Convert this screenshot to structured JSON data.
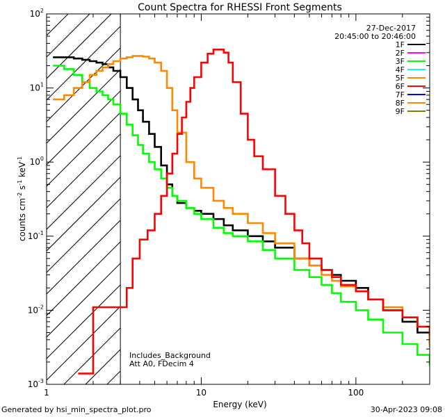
{
  "chart_data": {
    "type": "line",
    "title": "Count Spectra for RHESSI Front Segments",
    "xlabel": "Energy (keV)",
    "ylabel_parts": [
      "counts cm",
      "-2",
      " s",
      "-1",
      " keV",
      "-1"
    ],
    "xscale": "log",
    "yscale": "log",
    "xlim": [
      1,
      300
    ],
    "ylim": [
      0.001,
      100
    ],
    "x_ticks": [
      {
        "value": 1,
        "label": "1"
      },
      {
        "value": 10,
        "label": "10"
      },
      {
        "value": 100,
        "label": "100"
      }
    ],
    "y_ticks": [
      {
        "value": 0.001,
        "base": "10",
        "exp": "-3"
      },
      {
        "value": 0.01,
        "base": "10",
        "exp": "-2"
      },
      {
        "value": 0.1,
        "base": "10",
        "exp": "-1"
      },
      {
        "value": 1,
        "base": "10",
        "exp": "0"
      },
      {
        "value": 10,
        "base": "10",
        "exp": "1"
      },
      {
        "value": 100,
        "base": "10",
        "exp": "2"
      }
    ],
    "date": "27-Dec-2017",
    "time_range": "20:45:00 to 20:46:00",
    "hatch_region_max_energy": 3,
    "annotations": [
      "Includes_Background",
      "Att A0, FDecim 4"
    ],
    "legend_position": "top-right",
    "legend": [
      {
        "name": "1F",
        "color": "#000000"
      },
      {
        "name": "2F",
        "color": "#ff00ff"
      },
      {
        "name": "3F",
        "color": "#00ff00"
      },
      {
        "name": "4F",
        "color": "#00ffff"
      },
      {
        "name": "5F",
        "color": "#ff8800"
      },
      {
        "name": "6F",
        "color": "#ff0000"
      },
      {
        "name": "7F",
        "color": "#0000ff"
      },
      {
        "name": "8F",
        "color": "#ff8800"
      },
      {
        "name": "9F",
        "color": "#808000"
      }
    ],
    "series": [
      {
        "name": "1F",
        "color": "#000000",
        "x": [
          1.1,
          1.3,
          1.5,
          1.7,
          1.9,
          2.1,
          2.3,
          2.5,
          2.7,
          3.0,
          3.3,
          3.6,
          3.9,
          4.2,
          4.6,
          5.0,
          5.5,
          6.0,
          6.5,
          7.0,
          8.0,
          9.0,
          10,
          12,
          14,
          16,
          20,
          25,
          30,
          40,
          50,
          60,
          70,
          80,
          100,
          120,
          150,
          200,
          250,
          300
        ],
        "y": [
          26,
          26,
          25,
          24,
          23,
          22,
          21,
          19,
          17,
          14,
          10,
          7,
          5,
          3.5,
          2.4,
          1.6,
          0.9,
          0.5,
          0.35,
          0.28,
          0.24,
          0.22,
          0.2,
          0.17,
          0.14,
          0.12,
          0.1,
          0.085,
          0.07,
          0.05,
          0.04,
          0.035,
          0.03,
          0.025,
          0.02,
          0.014,
          0.01,
          0.007,
          0.005,
          0.0035
        ]
      },
      {
        "name": "3F",
        "color": "#00ff00",
        "x": [
          1.1,
          1.3,
          1.5,
          1.7,
          1.9,
          2.1,
          2.3,
          2.5,
          2.7,
          3.0,
          3.3,
          3.6,
          3.9,
          4.2,
          4.6,
          5.0,
          5.5,
          6.0,
          6.5,
          7.0,
          8.0,
          9.0,
          10,
          12,
          14,
          16,
          20,
          25,
          30,
          40,
          50,
          60,
          70,
          80,
          100,
          120,
          150,
          200,
          250,
          300
        ],
        "y": [
          20,
          18,
          15,
          12,
          10,
          9,
          8,
          7,
          6,
          4.5,
          3.2,
          2.3,
          1.7,
          1.3,
          1.0,
          0.8,
          0.6,
          0.45,
          0.35,
          0.3,
          0.24,
          0.2,
          0.17,
          0.13,
          0.11,
          0.1,
          0.085,
          0.065,
          0.05,
          0.035,
          0.028,
          0.022,
          0.017,
          0.013,
          0.01,
          0.0075,
          0.005,
          0.0035,
          0.0025,
          0.0018
        ]
      },
      {
        "name": "8F",
        "color": "#ff8800",
        "x": [
          1.1,
          1.3,
          1.5,
          1.7,
          1.9,
          2.1,
          2.3,
          2.5,
          2.7,
          3.0,
          3.3,
          3.6,
          3.9,
          4.2,
          4.6,
          5.0,
          5.5,
          6.0,
          6.5,
          7.0,
          8.0,
          9.0,
          10,
          12,
          14,
          16,
          20,
          25,
          30,
          40,
          50,
          60,
          70,
          80,
          100,
          120,
          150,
          200,
          250,
          300
        ],
        "y": [
          7,
          8,
          10,
          12,
          15,
          17,
          19,
          21,
          23,
          25,
          26,
          27,
          27,
          26.5,
          25,
          22,
          17,
          10,
          5,
          2.5,
          1.0,
          0.6,
          0.45,
          0.3,
          0.24,
          0.2,
          0.15,
          0.11,
          0.08,
          0.05,
          0.04,
          0.03,
          0.025,
          0.021,
          0.018,
          0.014,
          0.011,
          0.008,
          0.006,
          0.0032
        ]
      },
      {
        "name": "6F",
        "color": "#ff0000",
        "x": [
          1.6,
          1.75,
          1.85,
          2.0,
          2.3,
          2.7,
          3.0,
          3.3,
          3.6,
          4.0,
          4.5,
          5.0,
          5.5,
          6.0,
          6.5,
          7.0,
          7.5,
          8.0,
          8.5,
          9.0,
          10,
          11,
          12,
          13,
          14,
          15,
          16,
          18,
          20,
          22,
          25,
          30,
          35,
          40,
          45,
          50,
          60,
          70,
          80,
          100,
          120,
          150,
          200,
          250,
          300
        ],
        "y": [
          0.0014,
          0.0014,
          0.0014,
          0.011,
          0.011,
          0.011,
          0.011,
          0.02,
          0.05,
          0.09,
          0.12,
          0.2,
          0.35,
          0.7,
          1.3,
          2.4,
          4.0,
          6.5,
          10,
          14,
          22,
          29,
          33,
          33,
          30,
          22,
          12,
          4.5,
          2.0,
          1.2,
          0.8,
          0.35,
          0.2,
          0.12,
          0.08,
          0.05,
          0.035,
          0.028,
          0.022,
          0.018,
          0.014,
          0.01,
          0.008,
          0.006,
          0.0045
        ]
      }
    ]
  },
  "footer": {
    "left": "Generated by hsi_min_spectra_plot.pro",
    "right": "30-Apr-2023 09:08"
  }
}
